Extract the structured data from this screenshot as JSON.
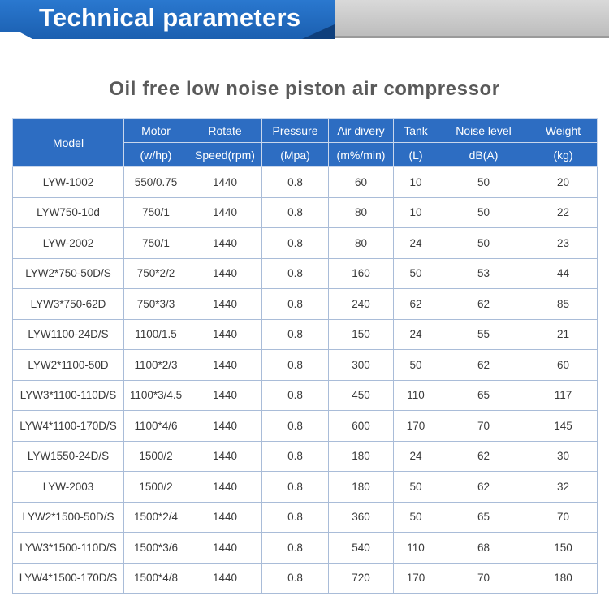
{
  "header": {
    "title": "Technical parameters"
  },
  "subtitle": "Oil free low noise piston air compressor",
  "table": {
    "columns": [
      {
        "label": "Model"
      },
      {
        "label": "Motor",
        "unit": "(w/hp)"
      },
      {
        "label": "Rotate",
        "unit": "Speed(rpm)"
      },
      {
        "label": "Pressure",
        "unit": "(Mpa)"
      },
      {
        "label": "Air divery",
        "unit": "(m%/min)"
      },
      {
        "label": "Tank",
        "unit": "(L)"
      },
      {
        "label": "Noise level",
        "unit": "dB(A)"
      },
      {
        "label": "Weight",
        "unit": "(kg)"
      }
    ],
    "rows": [
      [
        "LYW-1002",
        "550/0.75",
        "1440",
        "0.8",
        "60",
        "10",
        "50",
        "20"
      ],
      [
        "LYW750-10d",
        "750/1",
        "1440",
        "0.8",
        "80",
        "10",
        "50",
        "22"
      ],
      [
        "LYW-2002",
        "750/1",
        "1440",
        "0.8",
        "80",
        "24",
        "50",
        "23"
      ],
      [
        "LYW2*750-50D/S",
        "750*2/2",
        "1440",
        "0.8",
        "160",
        "50",
        "53",
        "44"
      ],
      [
        "LYW3*750-62D",
        "750*3/3",
        "1440",
        "0.8",
        "240",
        "62",
        "62",
        "85"
      ],
      [
        "LYW1100-24D/S",
        "1100/1.5",
        "1440",
        "0.8",
        "150",
        "24",
        "55",
        "21"
      ],
      [
        "LYW2*1100-50D",
        "1100*2/3",
        "1440",
        "0.8",
        "300",
        "50",
        "62",
        "60"
      ],
      [
        "LYW3*1100-110D/S",
        "1100*3/4.5",
        "1440",
        "0.8",
        "450",
        "110",
        "65",
        "117"
      ],
      [
        "LYW4*1100-170D/S",
        "1100*4/6",
        "1440",
        "0.8",
        "600",
        "170",
        "70",
        "145"
      ],
      [
        "LYW1550-24D/S",
        "1500/2",
        "1440",
        "0.8",
        "180",
        "24",
        "62",
        "30"
      ],
      [
        "LYW-2003",
        "1500/2",
        "1440",
        "0.8",
        "180",
        "50",
        "62",
        "32"
      ],
      [
        "LYW2*1500-50D/S",
        "1500*2/4",
        "1440",
        "0.8",
        "360",
        "50",
        "65",
        "70"
      ],
      [
        "LYW3*1500-110D/S",
        "1500*3/6",
        "1440",
        "0.8",
        "540",
        "110",
        "68",
        "150"
      ],
      [
        "LYW4*1500-170D/S",
        "1500*4/8",
        "1440",
        "0.8",
        "720",
        "170",
        "70",
        "180"
      ]
    ]
  }
}
